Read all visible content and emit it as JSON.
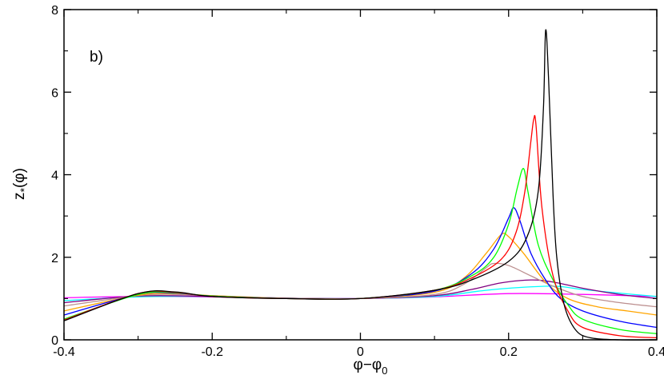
{
  "chart_data": {
    "type": "line",
    "panel_label": "b)",
    "xlabel": "φ−φ",
    "xlabel_sub": "0",
    "ylabel": "z",
    "ylabel_sub": "*",
    "ylabel_suffix": "(φ)",
    "xlim": [
      -0.4,
      0.4
    ],
    "ylim": [
      0,
      8
    ],
    "x_ticks": [
      -0.4,
      -0.2,
      0,
      0.2,
      0.4
    ],
    "x_tick_labels": [
      "-0.4",
      "-0.2",
      "0",
      "0.2",
      "0.4"
    ],
    "y_ticks": [
      0,
      2,
      4,
      6,
      8
    ],
    "y_tick_labels": [
      "0",
      "2",
      "4",
      "6",
      "8"
    ],
    "grid": false,
    "series": [
      {
        "color": "#ff00ff",
        "points": [
          [
            -0.4,
            1.02
          ],
          [
            -0.3,
            1.05
          ],
          [
            -0.2,
            1.04
          ],
          [
            -0.1,
            1.01
          ],
          [
            0,
            1.0
          ],
          [
            0.1,
            1.04
          ],
          [
            0.2,
            1.12
          ],
          [
            0.3,
            1.1
          ],
          [
            0.4,
            1.05
          ]
        ]
      },
      {
        "color": "#00ffff",
        "points": [
          [
            -0.4,
            0.95
          ],
          [
            -0.3,
            1.04
          ],
          [
            -0.2,
            1.05
          ],
          [
            -0.1,
            1.01
          ],
          [
            0,
            1.0
          ],
          [
            0.1,
            1.05
          ],
          [
            0.16,
            1.18
          ],
          [
            0.2,
            1.25
          ],
          [
            0.26,
            1.3
          ],
          [
            0.3,
            1.22
          ],
          [
            0.35,
            1.13
          ],
          [
            0.4,
            1.05
          ]
        ]
      },
      {
        "color": "#800080",
        "points": [
          [
            -0.4,
            0.9
          ],
          [
            -0.3,
            1.06
          ],
          [
            -0.2,
            1.05
          ],
          [
            -0.1,
            1.01
          ],
          [
            0,
            1.0
          ],
          [
            0.1,
            1.07
          ],
          [
            0.15,
            1.22
          ],
          [
            0.19,
            1.38
          ],
          [
            0.23,
            1.45
          ],
          [
            0.26,
            1.4
          ],
          [
            0.3,
            1.25
          ],
          [
            0.35,
            1.1
          ],
          [
            0.4,
            1.0
          ]
        ]
      },
      {
        "color": "#bc8f8f",
        "points": [
          [
            -0.4,
            0.82
          ],
          [
            -0.3,
            1.07
          ],
          [
            -0.25,
            1.1
          ],
          [
            -0.2,
            1.07
          ],
          [
            -0.1,
            1.01
          ],
          [
            0,
            1.0
          ],
          [
            0.1,
            1.1
          ],
          [
            0.14,
            1.35
          ],
          [
            0.17,
            1.75
          ],
          [
            0.18,
            1.85
          ],
          [
            0.2,
            1.8
          ],
          [
            0.23,
            1.55
          ],
          [
            0.26,
            1.3
          ],
          [
            0.3,
            1.05
          ],
          [
            0.35,
            0.9
          ],
          [
            0.4,
            0.8
          ]
        ]
      },
      {
        "color": "#ffa500",
        "points": [
          [
            -0.4,
            0.7
          ],
          [
            -0.3,
            1.08
          ],
          [
            -0.25,
            1.12
          ],
          [
            -0.2,
            1.07
          ],
          [
            -0.1,
            1.0
          ],
          [
            0,
            1.0
          ],
          [
            0.1,
            1.15
          ],
          [
            0.14,
            1.5
          ],
          [
            0.17,
            2.1
          ],
          [
            0.19,
            2.55
          ],
          [
            0.2,
            2.5
          ],
          [
            0.22,
            2.1
          ],
          [
            0.25,
            1.4
          ],
          [
            0.28,
            1.0
          ],
          [
            0.32,
            0.8
          ],
          [
            0.36,
            0.7
          ],
          [
            0.4,
            0.6
          ]
        ]
      },
      {
        "color": "#0000ff",
        "points": [
          [
            -0.4,
            0.6
          ],
          [
            -0.3,
            1.1
          ],
          [
            -0.25,
            1.13
          ],
          [
            -0.2,
            1.06
          ],
          [
            -0.1,
            1.0
          ],
          [
            0,
            1.0
          ],
          [
            0.1,
            1.18
          ],
          [
            0.15,
            1.6
          ],
          [
            0.18,
            2.2
          ],
          [
            0.2,
            2.95
          ],
          [
            0.207,
            3.2
          ],
          [
            0.215,
            2.9
          ],
          [
            0.23,
            2.1
          ],
          [
            0.25,
            1.45
          ],
          [
            0.27,
            1.0
          ],
          [
            0.3,
            0.7
          ],
          [
            0.35,
            0.45
          ],
          [
            0.4,
            0.3
          ]
        ]
      },
      {
        "color": "#00ff00",
        "points": [
          [
            -0.4,
            0.5
          ],
          [
            -0.3,
            1.1
          ],
          [
            -0.25,
            1.14
          ],
          [
            -0.2,
            1.06
          ],
          [
            -0.1,
            1.0
          ],
          [
            0,
            1.0
          ],
          [
            0.1,
            1.2
          ],
          [
            0.15,
            1.55
          ],
          [
            0.18,
            2.0
          ],
          [
            0.2,
            2.8
          ],
          [
            0.212,
            3.7
          ],
          [
            0.22,
            4.15
          ],
          [
            0.226,
            3.6
          ],
          [
            0.24,
            2.3
          ],
          [
            0.26,
            1.45
          ],
          [
            0.28,
            0.85
          ],
          [
            0.3,
            0.5
          ],
          [
            0.35,
            0.25
          ],
          [
            0.4,
            0.15
          ]
        ]
      },
      {
        "color": "#ff0000",
        "points": [
          [
            -0.4,
            0.48
          ],
          [
            -0.3,
            1.12
          ],
          [
            -0.25,
            1.15
          ],
          [
            -0.2,
            1.05
          ],
          [
            -0.1,
            1.0
          ],
          [
            0,
            1.0
          ],
          [
            0.1,
            1.2
          ],
          [
            0.15,
            1.5
          ],
          [
            0.19,
            1.95
          ],
          [
            0.21,
            2.6
          ],
          [
            0.222,
            3.6
          ],
          [
            0.23,
            4.8
          ],
          [
            0.234,
            5.35
          ],
          [
            0.237,
            5.2
          ],
          [
            0.245,
            3.2
          ],
          [
            0.26,
            1.55
          ],
          [
            0.28,
            0.7
          ],
          [
            0.3,
            0.3
          ],
          [
            0.35,
            0.1
          ],
          [
            0.4,
            0.05
          ]
        ]
      },
      {
        "color": "#000000",
        "points": [
          [
            -0.4,
            0.46
          ],
          [
            -0.3,
            1.12
          ],
          [
            -0.25,
            1.16
          ],
          [
            -0.2,
            1.05
          ],
          [
            -0.1,
            1.0
          ],
          [
            0,
            1.0
          ],
          [
            0.1,
            1.2
          ],
          [
            0.15,
            1.45
          ],
          [
            0.2,
            1.9
          ],
          [
            0.225,
            2.5
          ],
          [
            0.24,
            3.6
          ],
          [
            0.247,
            5.6
          ],
          [
            0.25,
            7.5
          ],
          [
            0.254,
            6.3
          ],
          [
            0.26,
            3.5
          ],
          [
            0.265,
            2.0
          ],
          [
            0.275,
            0.85
          ],
          [
            0.29,
            0.25
          ],
          [
            0.31,
            0.05
          ],
          [
            0.35,
            0.0
          ],
          [
            0.4,
            0.0
          ]
        ]
      }
    ]
  }
}
